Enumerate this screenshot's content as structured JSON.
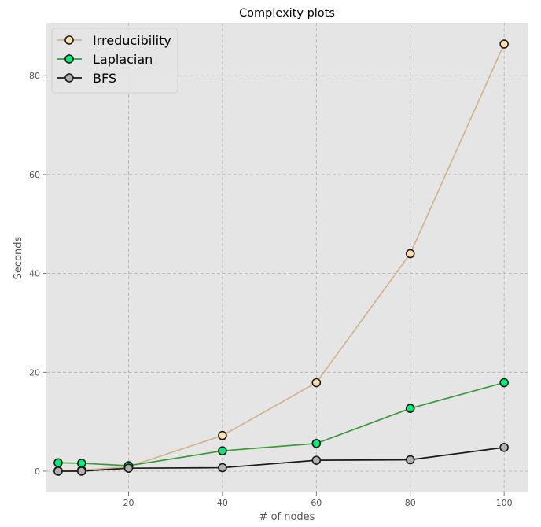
{
  "chart_data": {
    "type": "line",
    "title": "Complexity plots",
    "xlabel": "# of nodes",
    "ylabel": "Seconds",
    "x": [
      5,
      10,
      20,
      40,
      60,
      80,
      100
    ],
    "xticks": [
      20,
      40,
      60,
      80,
      100
    ],
    "yticks": [
      0,
      20,
      40,
      60,
      80
    ],
    "xlim": [
      2.5,
      105
    ],
    "ylim": [
      -4.3,
      90.7
    ],
    "grid": true,
    "legend_position": "top-left",
    "background_color": "#e5e5e5",
    "series": [
      {
        "name": "Irreducibility",
        "values": [
          0.1,
          0.2,
          0.9,
          7.2,
          17.9,
          44.0,
          86.4
        ],
        "line_color": "#d2b48c",
        "marker_fill": "#ffdead"
      },
      {
        "name": "Laplacian",
        "values": [
          1.7,
          1.6,
          1.1,
          4.1,
          5.6,
          12.7,
          17.9
        ],
        "line_color": "#3a9a3a",
        "marker_fill": "#00ee77"
      },
      {
        "name": "BFS",
        "values": [
          0.0,
          0.0,
          0.6,
          0.7,
          2.2,
          2.3,
          4.8
        ],
        "line_color": "#1a1a1a",
        "marker_fill": "#b0b0b0"
      }
    ]
  }
}
